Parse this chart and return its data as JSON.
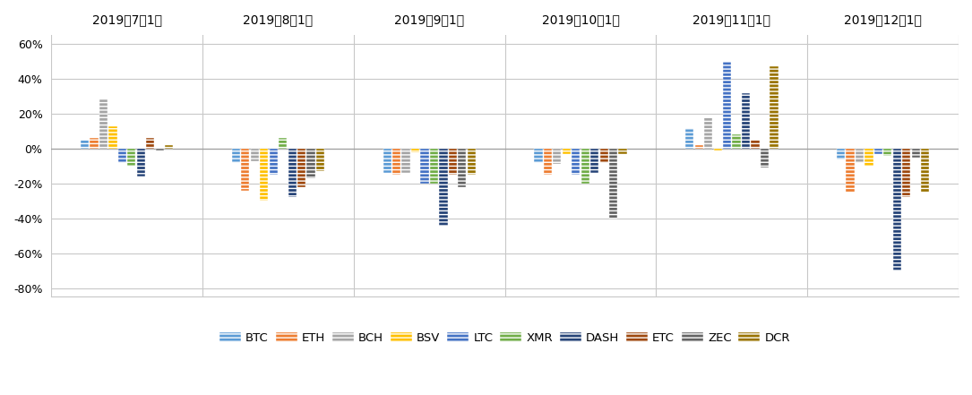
{
  "months": [
    "2019年7月1日",
    "2019年8月1日",
    "2019年9月1日",
    "2019年10月1日",
    "2019年11月1日",
    "2019年12月1日"
  ],
  "series": {
    "BTC": [
      0.05,
      -0.08,
      -0.14,
      -0.08,
      0.12,
      -0.06
    ],
    "ETH": [
      0.06,
      -0.24,
      -0.15,
      -0.15,
      0.02,
      -0.25
    ],
    "BCH": [
      0.28,
      -0.07,
      -0.14,
      -0.09,
      0.18,
      -0.08
    ],
    "BSV": [
      0.13,
      -0.3,
      -0.02,
      -0.03,
      -0.01,
      -0.1
    ],
    "LTC": [
      -0.08,
      -0.15,
      -0.2,
      -0.15,
      0.5,
      -0.03
    ],
    "XMR": [
      -0.1,
      0.06,
      -0.2,
      -0.2,
      0.08,
      -0.04
    ],
    "DASH": [
      -0.16,
      -0.28,
      -0.44,
      -0.14,
      0.32,
      -0.7
    ],
    "ETC": [
      0.06,
      -0.22,
      -0.15,
      -0.08,
      0.05,
      -0.28
    ],
    "ZEC": [
      -0.01,
      -0.17,
      -0.22,
      -0.4,
      -0.11,
      -0.05
    ],
    "DCR": [
      0.02,
      -0.13,
      -0.15,
      -0.03,
      0.47,
      -0.25
    ]
  },
  "colors": {
    "BTC": "#5B9BD5",
    "ETH": "#ED7D31",
    "BCH": "#A5A5A5",
    "BSV": "#FFC000",
    "LTC": "#4472C4",
    "XMR": "#70AD47",
    "DASH": "#264478",
    "ETC": "#9E480E",
    "ZEC": "#636363",
    "DCR": "#997300"
  },
  "hatch": "----",
  "ylim": [
    -0.85,
    0.65
  ],
  "yticks": [
    -0.8,
    -0.6,
    -0.4,
    -0.2,
    0.0,
    0.2,
    0.4,
    0.6
  ],
  "figsize": [
    10.85,
    4.41
  ],
  "dpi": 100
}
